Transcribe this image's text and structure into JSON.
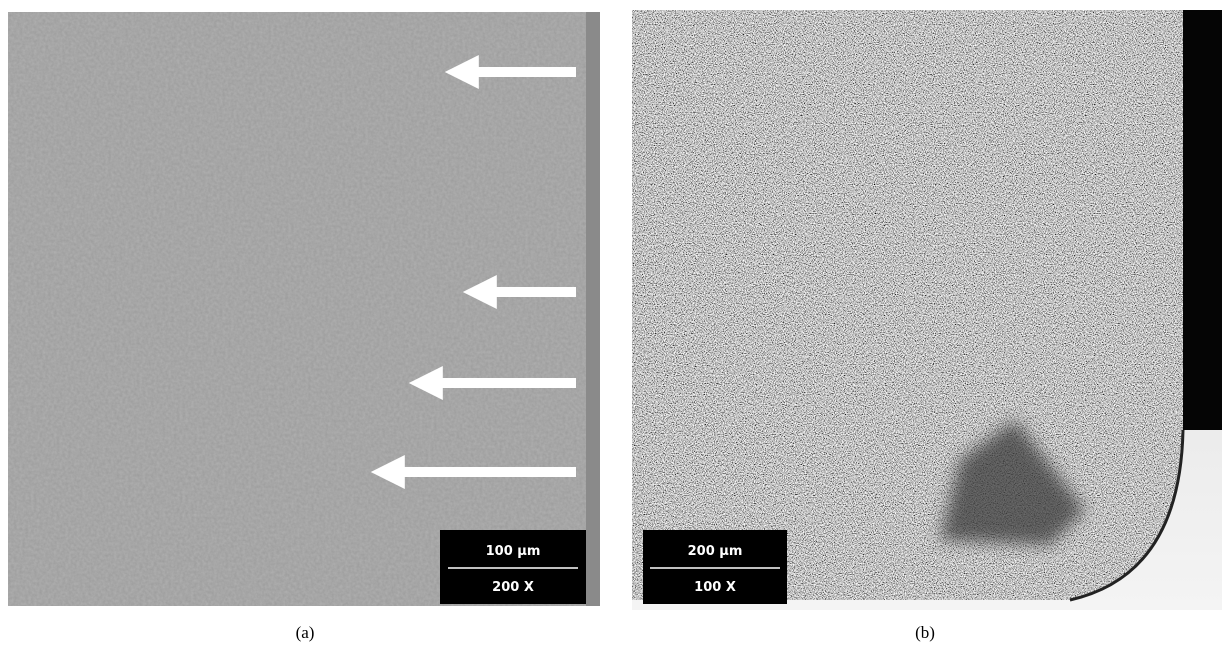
{
  "panels": [
    {
      "scale_bar": "100 µm",
      "magnification": "200 X",
      "caption": "(a)"
    },
    {
      "scale_bar": "200 µm",
      "magnification": "100 X",
      "caption": "(b)"
    }
  ]
}
